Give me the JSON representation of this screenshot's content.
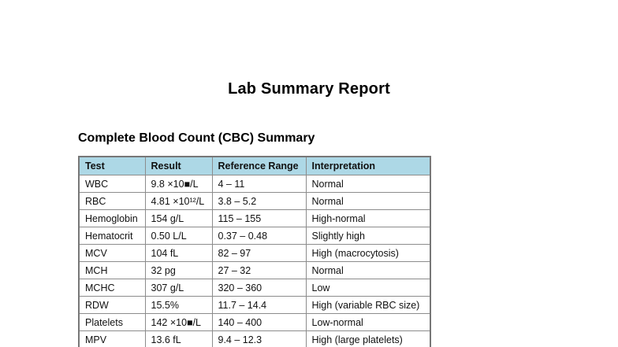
{
  "page": {
    "title": "Lab Summary Report",
    "section_heading": "Complete Blood Count (CBC) Summary"
  },
  "table": {
    "type": "table",
    "columns": [
      "Test",
      "Result",
      "Reference Range",
      "Interpretation"
    ],
    "rows": [
      [
        "WBC",
        "9.8 ×10■/L",
        "4 – 11",
        "Normal"
      ],
      [
        "RBC",
        "4.81 ×10¹²/L",
        "3.8 – 5.2",
        "Normal"
      ],
      [
        "Hemoglobin",
        "154 g/L",
        "115 – 155",
        "High-normal"
      ],
      [
        "Hematocrit",
        "0.50 L/L",
        "0.37 – 0.48",
        "Slightly high"
      ],
      [
        "MCV",
        "104 fL",
        "82 – 97",
        "High (macrocytosis)"
      ],
      [
        "MCH",
        "32 pg",
        "27 – 32",
        "Normal"
      ],
      [
        "MCHC",
        "307 g/L",
        "320 – 360",
        "Low"
      ],
      [
        "RDW",
        "15.5%",
        "11.7 – 14.4",
        "High (variable RBC size)"
      ],
      [
        "Platelets",
        "142 ×10■/L",
        "140 – 400",
        "Low-normal"
      ],
      [
        "MPV",
        "13.6 fL",
        "9.4 – 12.3",
        "High (large platelets)"
      ]
    ],
    "colors": {
      "header_bg": "#add8e6",
      "border_inner": "#8c8c8c",
      "border_outer": "#777777"
    }
  }
}
